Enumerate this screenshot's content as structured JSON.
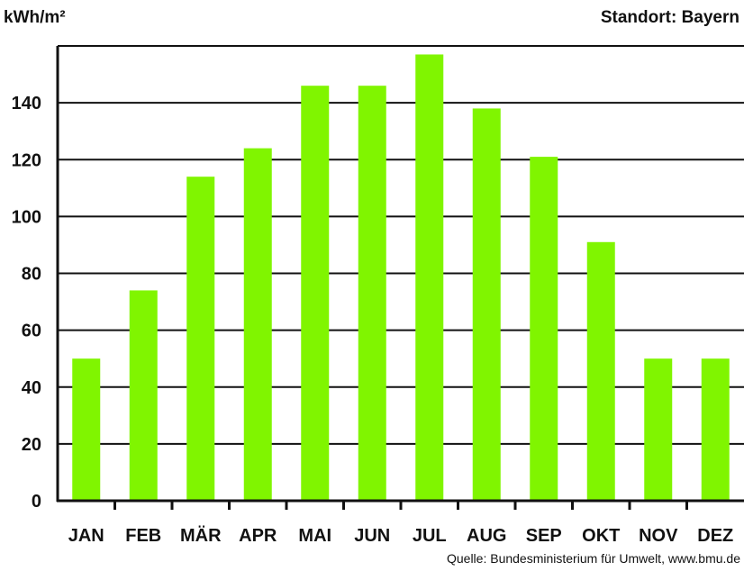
{
  "chart_data": {
    "type": "bar",
    "categories": [
      "JAN",
      "FEB",
      "MÄR",
      "APR",
      "MAI",
      "JUN",
      "JUL",
      "AUG",
      "SEP",
      "OKT",
      "NOV",
      "DEZ"
    ],
    "values": [
      50,
      74,
      114,
      124,
      146,
      146,
      157,
      138,
      121,
      91,
      50,
      50
    ],
    "ylabel": "kWh/m²",
    "ylim": [
      0,
      160
    ],
    "yticks": [
      0,
      20,
      40,
      60,
      80,
      100,
      120,
      140
    ],
    "grid": true,
    "bar_color": "#80f500",
    "annotation": "Standort: Bayern",
    "source": "Quelle: Bundesministerium für Umwelt, www.bmu.de"
  }
}
